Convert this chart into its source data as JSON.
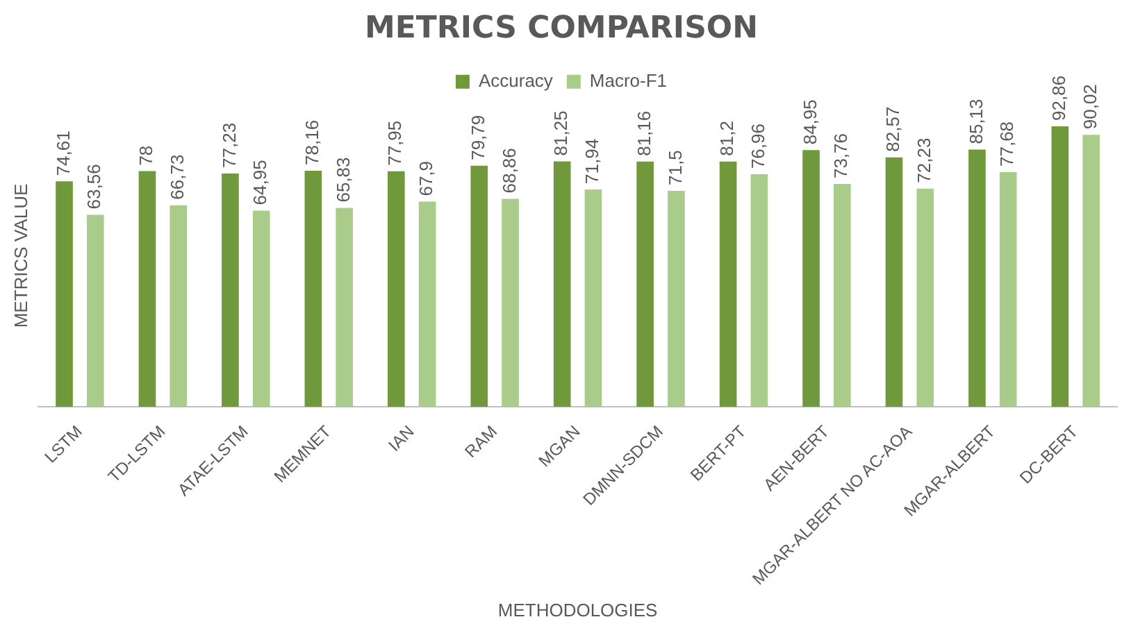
{
  "chart_data": {
    "type": "bar",
    "title": "METRICS COMPARISON",
    "xlabel": "METHODOLOGIES",
    "ylabel": "METRICS VALUE",
    "categories": [
      "LSTM",
      "TD-LSTM",
      "ATAE-LSTM",
      "MEMNET",
      "IAN",
      "RAM",
      "MGAN",
      "DMNN-SDCM",
      "BERT-PT",
      "AEN-BERT",
      "MGAR-ALBERT NO AC-AOA",
      "MGAR-ALBERT",
      "DC-BERT"
    ],
    "series": [
      {
        "name": "Accuracy",
        "color": "#70993b",
        "values": [
          74.61,
          78,
          77.23,
          78.16,
          77.95,
          79.79,
          81.25,
          81.16,
          81.2,
          84.95,
          82.57,
          85.13,
          92.86
        ],
        "value_labels": [
          "74,61",
          "78",
          "77,23",
          "78,16",
          "77,95",
          "79,79",
          "81,25",
          "81,16",
          "81,2",
          "84,95",
          "82,57",
          "85,13",
          "92,86"
        ]
      },
      {
        "name": "Macro-F1",
        "color": "#a9cc8a",
        "values": [
          63.56,
          66.73,
          64.95,
          65.83,
          67.9,
          68.86,
          71.94,
          71.5,
          76.96,
          73.76,
          72.23,
          77.68,
          90.02
        ],
        "value_labels": [
          "63,56",
          "66,73",
          "64,95",
          "65,83",
          "67,9",
          "68,86",
          "71,94",
          "71,5",
          "76,96",
          "73,76",
          "72,23",
          "77,68",
          "90,02"
        ]
      }
    ],
    "legend": "top",
    "tick_labels": "x"
  }
}
